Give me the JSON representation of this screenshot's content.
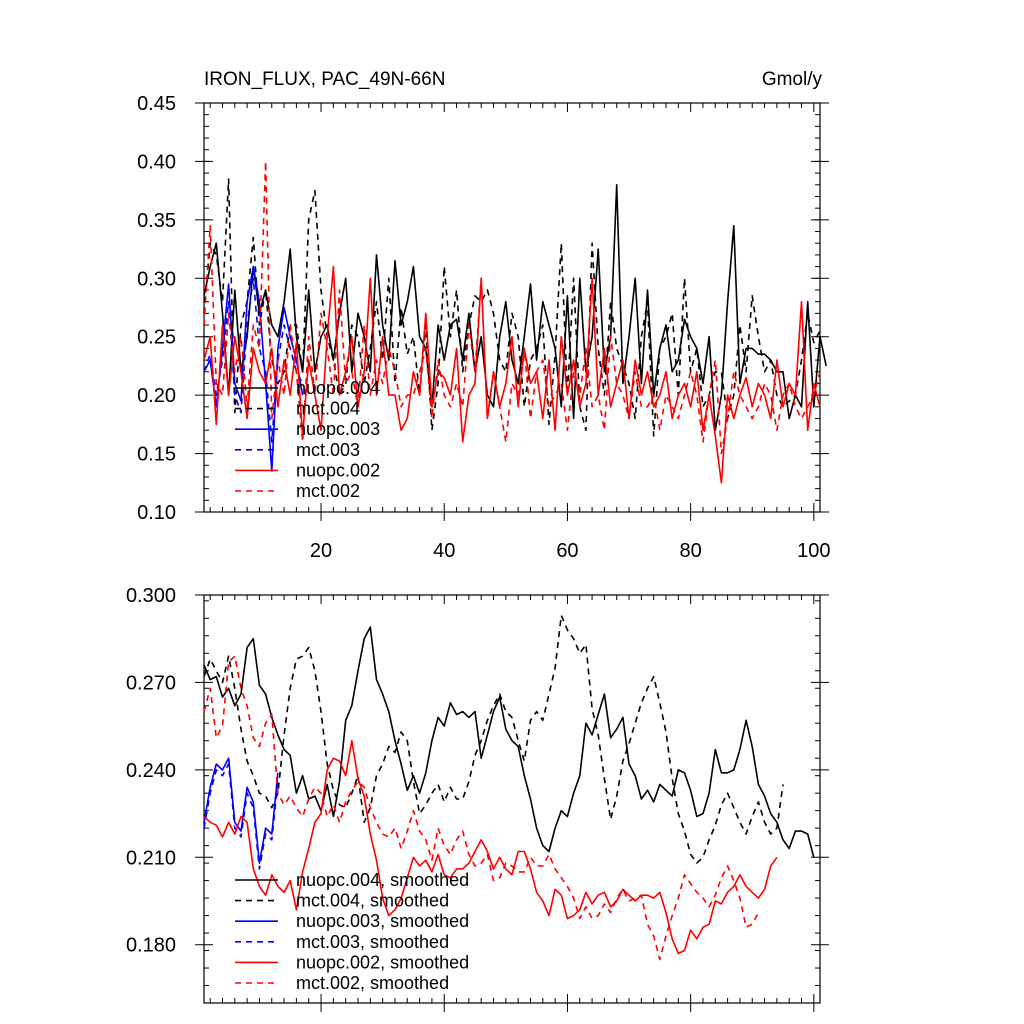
{
  "chart_data": [
    {
      "type": "line",
      "title": "IRON_FLUX, PAC_49N-66N",
      "units": "Gmol/y",
      "xlim": [
        1,
        101
      ],
      "ylim": [
        0.1,
        0.45
      ],
      "x_ticks": [
        20,
        40,
        60,
        80,
        100
      ],
      "x_tick_labels": [
        "20",
        "40",
        "60",
        "80",
        "100"
      ],
      "y_ticks": [
        0.1,
        0.15,
        0.2,
        0.25,
        0.3,
        0.35,
        0.4,
        0.45
      ],
      "y_tick_labels": [
        "0.10",
        "0.15",
        "0.20",
        "0.25",
        "0.30",
        "0.35",
        "0.40",
        "0.45"
      ],
      "legend_position": "bottom-left",
      "series": [
        {
          "name": "nuopc.004",
          "color": "#000000",
          "dash": "solid",
          "x_start": 1,
          "values": [
            0.285,
            0.31,
            0.33,
            0.27,
            0.2,
            0.29,
            0.22,
            0.25,
            0.31,
            0.27,
            0.29,
            0.26,
            0.25,
            0.28,
            0.325,
            0.25,
            0.22,
            0.29,
            0.22,
            0.25,
            0.26,
            0.23,
            0.27,
            0.3,
            0.22,
            0.27,
            0.25,
            0.22,
            0.32,
            0.26,
            0.23,
            0.315,
            0.26,
            0.28,
            0.31,
            0.25,
            0.24,
            0.19,
            0.26,
            0.23,
            0.26,
            0.265,
            0.23,
            0.27,
            0.22,
            0.25,
            0.2,
            0.19,
            0.25,
            0.28,
            0.23,
            0.21,
            0.25,
            0.295,
            0.23,
            0.28,
            0.26,
            0.24,
            0.19,
            0.285,
            0.18,
            0.3,
            0.22,
            0.25,
            0.325,
            0.22,
            0.25,
            0.38,
            0.21,
            0.25,
            0.3,
            0.21,
            0.29,
            0.2,
            0.24,
            0.26,
            0.22,
            0.23,
            0.265,
            0.25,
            0.24,
            0.21,
            0.25,
            0.17,
            0.2,
            0.28,
            0.345,
            0.21,
            0.24,
            0.24,
            0.235,
            0.235,
            0.23,
            0.22,
            0.22,
            0.18,
            0.2,
            0.19,
            0.28,
            0.19,
            0.25,
            0.225
          ]
        },
        {
          "name": "mct.004",
          "color": "#000000",
          "dash": "dashed",
          "x_start": 1,
          "values": [
            0.27,
            0.33,
            0.32,
            0.28,
            0.385,
            0.185,
            0.26,
            0.28,
            0.335,
            0.26,
            0.29,
            0.23,
            0.21,
            0.22,
            0.26,
            0.26,
            0.22,
            0.35,
            0.375,
            0.29,
            0.25,
            0.23,
            0.2,
            0.21,
            0.26,
            0.25,
            0.21,
            0.24,
            0.28,
            0.23,
            0.3,
            0.21,
            0.275,
            0.235,
            0.25,
            0.2,
            0.26,
            0.17,
            0.21,
            0.31,
            0.25,
            0.29,
            0.22,
            0.26,
            0.285,
            0.28,
            0.29,
            0.27,
            0.23,
            0.22,
            0.27,
            0.25,
            0.19,
            0.23,
            0.24,
            0.26,
            0.175,
            0.235,
            0.33,
            0.2,
            0.3,
            0.19,
            0.17,
            0.33,
            0.24,
            0.2,
            0.28,
            0.24,
            0.225,
            0.21,
            0.18,
            0.25,
            0.28,
            0.165,
            0.24,
            0.25,
            0.27,
            0.2,
            0.3,
            0.22,
            0.24,
            0.19,
            0.2,
            0.22,
            0.22,
            0.18,
            0.2,
            0.26,
            0.22,
            0.285,
            0.25,
            0.22,
            0.23,
            0.2,
            0.19,
            0.195,
            0.2,
            0.23,
            0.27,
            0.245,
            0.255
          ]
        },
        {
          "name": "nuopc.003",
          "color": "#0000ff",
          "dash": "solid",
          "x_start": 1,
          "values": [
            0.22,
            0.23,
            0.19,
            0.24,
            0.295,
            0.21,
            0.195,
            0.28,
            0.31,
            0.28,
            0.21,
            0.135,
            0.24,
            0.275,
            0.25,
            0.23,
            0.2
          ]
        },
        {
          "name": "mct.003",
          "color": "#0000ff",
          "dash": "dashed",
          "x_start": 1,
          "values": [
            0.22,
            0.235,
            0.2,
            0.23,
            0.28,
            0.2,
            0.185,
            0.26,
            0.3,
            0.24,
            0.22,
            0.16,
            0.23,
            0.26,
            0.24,
            0.22,
            0.21
          ]
        },
        {
          "name": "nuopc.002",
          "color": "#ff0000",
          "dash": "solid",
          "x_start": 1,
          "values": [
            0.23,
            0.25,
            0.175,
            0.26,
            0.2,
            0.25,
            0.22,
            0.18,
            0.24,
            0.22,
            0.21,
            0.24,
            0.19,
            0.23,
            0.2,
            0.245,
            0.165,
            0.23,
            0.2,
            0.17,
            0.25,
            0.31,
            0.2,
            0.22,
            0.25,
            0.19,
            0.22,
            0.3,
            0.2,
            0.25,
            0.2,
            0.2,
            0.17,
            0.18,
            0.22,
            0.2,
            0.27,
            0.19,
            0.22,
            0.215,
            0.2,
            0.24,
            0.16,
            0.2,
            0.21,
            0.3,
            0.18,
            0.22,
            0.19,
            0.21,
            0.25,
            0.19,
            0.24,
            0.21,
            0.22,
            0.18,
            0.23,
            0.17,
            0.25,
            0.2,
            0.23,
            0.19,
            0.21,
            0.3,
            0.2,
            0.24,
            0.19,
            0.21,
            0.23,
            0.18,
            0.23,
            0.2,
            0.22,
            0.19,
            0.2,
            0.22,
            0.18,
            0.2,
            0.21,
            0.19,
            0.22,
            0.17,
            0.2,
            0.165,
            0.125,
            0.2,
            0.18,
            0.2,
            0.215,
            0.19,
            0.21,
            0.2,
            0.18,
            0.23,
            0.19,
            0.21,
            0.2,
            0.28,
            0.17,
            0.21,
            0.19
          ]
        },
        {
          "name": "mct.002",
          "color": "#ff0000",
          "dash": "dashed",
          "x_start": 1,
          "values": [
            0.26,
            0.345,
            0.21,
            0.2,
            0.27,
            0.22,
            0.25,
            0.19,
            0.26,
            0.24,
            0.4,
            0.18,
            0.23,
            0.2,
            0.26,
            0.22,
            0.16,
            0.25,
            0.2,
            0.27,
            0.24,
            0.2,
            0.29,
            0.21,
            0.22,
            0.19,
            0.26,
            0.2,
            0.23,
            0.21,
            0.24,
            0.22,
            0.19,
            0.2,
            0.2,
            0.22,
            0.24,
            0.18,
            0.23,
            0.2,
            0.19,
            0.21,
            0.19,
            0.26,
            0.22,
            0.3,
            0.18,
            0.22,
            0.19,
            0.16,
            0.21,
            0.2,
            0.24,
            0.18,
            0.22,
            0.23,
            0.19,
            0.2,
            0.21,
            0.17,
            0.22,
            0.2,
            0.24,
            0.19,
            0.2,
            0.17,
            0.25,
            0.21,
            0.2,
            0.18,
            0.22,
            0.19,
            0.19,
            0.2,
            0.17,
            0.2,
            0.19,
            0.18,
            0.2,
            0.22,
            0.2,
            0.16,
            0.2,
            0.23,
            0.15,
            0.18,
            0.22,
            0.2,
            0.19,
            0.18,
            0.19,
            0.21,
            0.2,
            0.17,
            0.2,
            0.21,
            0.19,
            0.18,
            0.19,
            0.2,
            0.22
          ]
        }
      ]
    },
    {
      "type": "line",
      "title": "",
      "xlim": [
        1,
        101
      ],
      "ylim": [
        0.16,
        0.3
      ],
      "x_ticks": [
        20,
        40,
        60,
        80,
        100
      ],
      "y_ticks": [
        0.18,
        0.21,
        0.24,
        0.27,
        0.3
      ],
      "y_tick_labels": [
        "0.180",
        "0.210",
        "0.240",
        "0.270",
        "0.300"
      ],
      "legend_position": "bottom-left",
      "series": [
        {
          "name": "nuopc.004, smoothed",
          "color": "#000000",
          "dash": "solid",
          "x_start": 1,
          "values": [
            0.276,
            0.271,
            0.272,
            0.265,
            0.268,
            0.262,
            0.266,
            0.282,
            0.285,
            0.269,
            0.266,
            0.258,
            0.252,
            0.247,
            0.245,
            0.232,
            0.238,
            0.23,
            0.231,
            0.226,
            0.235,
            0.224,
            0.236,
            0.257,
            0.262,
            0.274,
            0.285,
            0.289,
            0.271,
            0.266,
            0.26,
            0.25,
            0.242,
            0.233,
            0.238,
            0.232,
            0.239,
            0.25,
            0.258,
            0.255,
            0.263,
            0.259,
            0.26,
            0.258,
            0.26,
            0.244,
            0.252,
            0.26,
            0.265,
            0.254,
            0.25,
            0.248,
            0.238,
            0.23,
            0.22,
            0.214,
            0.212,
            0.22,
            0.226,
            0.224,
            0.232,
            0.238,
            0.256,
            0.252,
            0.259,
            0.266,
            0.251,
            0.254,
            0.258,
            0.242,
            0.238,
            0.23,
            0.233,
            0.229,
            0.235,
            0.233,
            0.231,
            0.24,
            0.239,
            0.233,
            0.224,
            0.225,
            0.232,
            0.247,
            0.239,
            0.239,
            0.24,
            0.247,
            0.257,
            0.248,
            0.235,
            0.231,
            0.225,
            0.222,
            0.216,
            0.213,
            0.219,
            0.219,
            0.218,
            0.21
          ]
        },
        {
          "name": "mct.004, smoothed",
          "color": "#000000",
          "dash": "dashed",
          "x_start": 1,
          "values": [
            0.272,
            0.278,
            0.274,
            0.27,
            0.279,
            0.268,
            0.254,
            0.243,
            0.238,
            0.232,
            0.231,
            0.227,
            0.232,
            0.252,
            0.268,
            0.278,
            0.279,
            0.282,
            0.274,
            0.26,
            0.242,
            0.233,
            0.228,
            0.227,
            0.232,
            0.238,
            0.222,
            0.227,
            0.238,
            0.242,
            0.248,
            0.246,
            0.253,
            0.25,
            0.236,
            0.225,
            0.228,
            0.232,
            0.235,
            0.229,
            0.234,
            0.23,
            0.23,
            0.236,
            0.245,
            0.25,
            0.257,
            0.262,
            0.266,
            0.26,
            0.258,
            0.25,
            0.243,
            0.257,
            0.26,
            0.257,
            0.266,
            0.275,
            0.293,
            0.288,
            0.285,
            0.28,
            0.283,
            0.261,
            0.252,
            0.237,
            0.223,
            0.231,
            0.243,
            0.249,
            0.256,
            0.263,
            0.268,
            0.272,
            0.263,
            0.253,
            0.237,
            0.225,
            0.219,
            0.211,
            0.208,
            0.21,
            0.216,
            0.221,
            0.228,
            0.232,
            0.227,
            0.222,
            0.218,
            0.224,
            0.229,
            0.222,
            0.218,
            0.22,
            0.235
          ]
        },
        {
          "name": "nuopc.003, smoothed",
          "color": "#0000ff",
          "dash": "solid",
          "x_start": 1,
          "values": [
            0.222,
            0.234,
            0.242,
            0.24,
            0.244,
            0.222,
            0.219,
            0.234,
            0.229,
            0.208,
            0.22,
            0.218,
            0.239
          ]
        },
        {
          "name": "mct.003, smoothed",
          "color": "#0000ff",
          "dash": "dashed",
          "x_start": 1,
          "values": [
            0.22,
            0.232,
            0.24,
            0.238,
            0.242,
            0.22,
            0.217,
            0.232,
            0.227,
            0.206,
            0.218,
            0.216,
            0.236
          ]
        },
        {
          "name": "nuopc.002, smoothed",
          "color": "#ff0000",
          "dash": "solid",
          "x_start": 1,
          "values": [
            0.224,
            0.222,
            0.221,
            0.217,
            0.222,
            0.218,
            0.224,
            0.222,
            0.206,
            0.2,
            0.197,
            0.204,
            0.2,
            0.198,
            0.202,
            0.192,
            0.205,
            0.213,
            0.222,
            0.225,
            0.24,
            0.244,
            0.243,
            0.238,
            0.25,
            0.237,
            0.231,
            0.218,
            0.209,
            0.196,
            0.19,
            0.192,
            0.196,
            0.203,
            0.21,
            0.207,
            0.209,
            0.205,
            0.211,
            0.204,
            0.203,
            0.206,
            0.206,
            0.208,
            0.212,
            0.216,
            0.212,
            0.206,
            0.21,
            0.206,
            0.204,
            0.212,
            0.212,
            0.206,
            0.198,
            0.195,
            0.19,
            0.199,
            0.197,
            0.189,
            0.19,
            0.192,
            0.198,
            0.194,
            0.197,
            0.198,
            0.193,
            0.195,
            0.199,
            0.197,
            0.195,
            0.197,
            0.197,
            0.196,
            0.198,
            0.191,
            0.182,
            0.177,
            0.178,
            0.185,
            0.182,
            0.186,
            0.187,
            0.195,
            0.194,
            0.198,
            0.2,
            0.204,
            0.2,
            0.198,
            0.196,
            0.199,
            0.207,
            0.21
          ]
        },
        {
          "name": "mct.002, smoothed",
          "color": "#ff0000",
          "dash": "dashed",
          "x_start": 1,
          "values": [
            0.26,
            0.268,
            0.251,
            0.255,
            0.277,
            0.279,
            0.268,
            0.262,
            0.251,
            0.248,
            0.256,
            0.259,
            0.232,
            0.228,
            0.231,
            0.227,
            0.224,
            0.23,
            0.234,
            0.232,
            0.224,
            0.228,
            0.222,
            0.229,
            0.233,
            0.236,
            0.234,
            0.227,
            0.222,
            0.218,
            0.217,
            0.22,
            0.213,
            0.219,
            0.226,
            0.219,
            0.216,
            0.209,
            0.22,
            0.214,
            0.211,
            0.216,
            0.219,
            0.211,
            0.207,
            0.208,
            0.211,
            0.202,
            0.203,
            0.208,
            0.207,
            0.205,
            0.205,
            0.21,
            0.207,
            0.207,
            0.211,
            0.206,
            0.203,
            0.2,
            0.196,
            0.189,
            0.193,
            0.189,
            0.19,
            0.194,
            0.191,
            0.196,
            0.199,
            0.195,
            0.196,
            0.197,
            0.187,
            0.183,
            0.175,
            0.183,
            0.19,
            0.196,
            0.204,
            0.201,
            0.198,
            0.196,
            0.193,
            0.197,
            0.203,
            0.207,
            0.202,
            0.196,
            0.186,
            0.187,
            0.191
          ]
        }
      ]
    }
  ]
}
